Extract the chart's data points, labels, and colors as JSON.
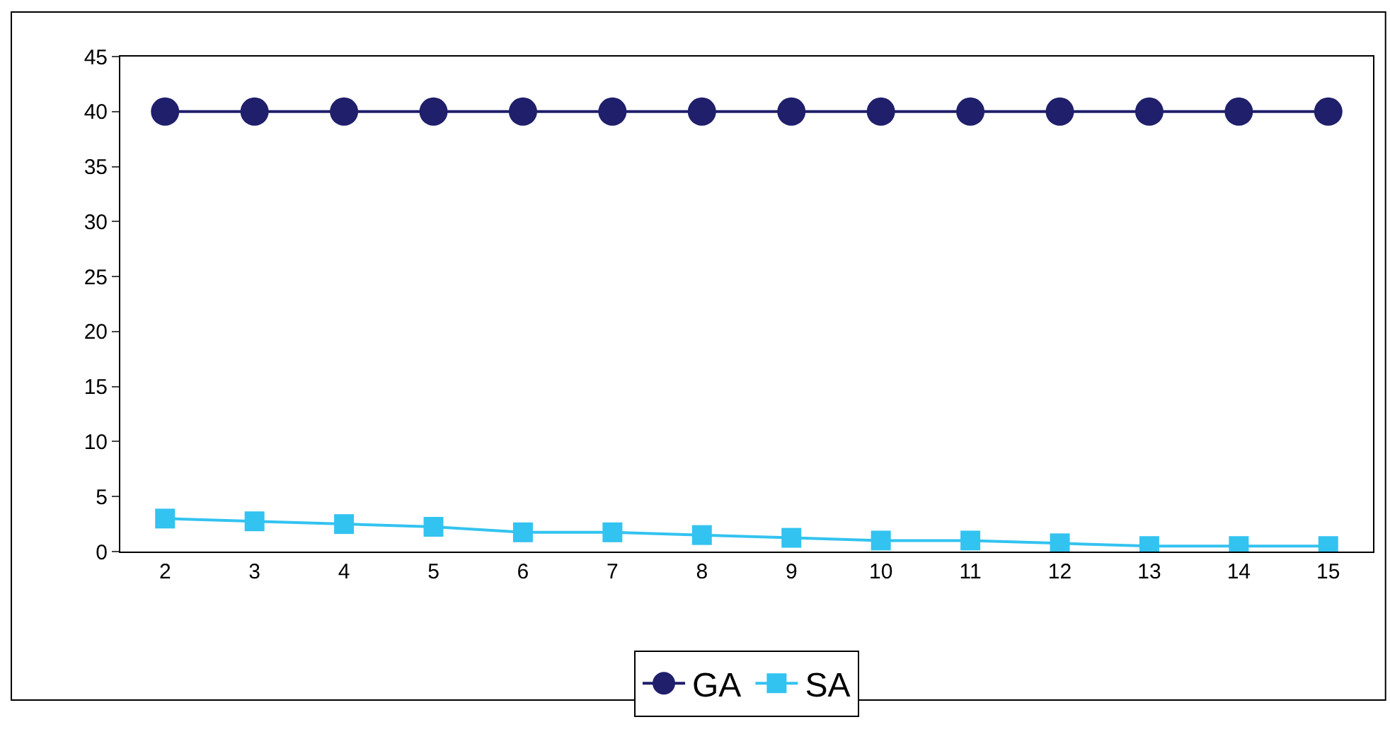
{
  "chart_data": {
    "type": "line",
    "categories": [
      "2",
      "3",
      "4",
      "5",
      "6",
      "7",
      "8",
      "9",
      "10",
      "11",
      "12",
      "13",
      "14",
      "15"
    ],
    "series": [
      {
        "name": "GA",
        "color": "#1f1f6b",
        "marker": "circle",
        "values": [
          40,
          40,
          40,
          40,
          40,
          40,
          40,
          40,
          40,
          40,
          40,
          40,
          40,
          40
        ]
      },
      {
        "name": "SA",
        "color": "#33c3f0",
        "marker": "square",
        "values": [
          3,
          2.75,
          2.5,
          2.25,
          1.75,
          1.75,
          1.5,
          1.25,
          1,
          1,
          0.75,
          0.5,
          0.5,
          0.5
        ]
      }
    ],
    "ylim": [
      0,
      45
    ],
    "yticks": [
      0,
      5,
      10,
      15,
      20,
      25,
      30,
      35,
      40,
      45
    ],
    "legend": "bottom"
  }
}
